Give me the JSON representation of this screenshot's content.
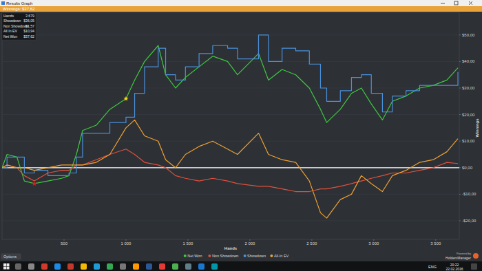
{
  "window": {
    "title": "Results Graph"
  },
  "header": {
    "winnings": "Winnings: $37,62"
  },
  "stats_box": {
    "rows": [
      [
        "Hands",
        "3 679"
      ],
      [
        "Showdown",
        "$36,05"
      ],
      [
        "Non Showdown",
        "$1,57"
      ],
      [
        "All In EV",
        "$10,94"
      ],
      [
        "Net Won",
        "$37,62"
      ]
    ]
  },
  "chart_data": {
    "type": "line",
    "x_label": "Hands",
    "y_label": "Winnings",
    "x": [
      0,
      40,
      120,
      180,
      260,
      370,
      480,
      540,
      600,
      650,
      760,
      870,
      1000,
      1070,
      1150,
      1260,
      1320,
      1400,
      1480,
      1590,
      1700,
      1820,
      1900,
      2070,
      2150,
      2260,
      2370,
      2480,
      2570,
      2620,
      2730,
      2820,
      2900,
      2980,
      3070,
      3150,
      3260,
      3370,
      3480,
      3590,
      3679
    ],
    "series": [
      {
        "name": "Net Won",
        "color": "#3ec93e",
        "values": [
          0,
          5,
          4,
          -5,
          -6,
          -5,
          -4,
          -3,
          5,
          14,
          16,
          22,
          26,
          33,
          40,
          46,
          35,
          30,
          34,
          38,
          42,
          40,
          35,
          43,
          33,
          37,
          35,
          30,
          22,
          17,
          22,
          28,
          30,
          24,
          18,
          25,
          27,
          30,
          31,
          33,
          37.62
        ]
      },
      {
        "name": "Non Showdown",
        "color": "#e0503c",
        "values": [
          0,
          1,
          0,
          -3,
          -5,
          -2,
          -1,
          -1,
          1,
          1,
          3,
          5,
          7,
          5,
          2,
          1,
          0,
          -3,
          -4,
          -5,
          -4,
          -5,
          -6,
          -7,
          -7,
          -8,
          -9,
          -9,
          -8,
          -8,
          -7,
          -6,
          -5,
          -4,
          -3,
          -2,
          -2,
          -1,
          0,
          2,
          1.57
        ]
      },
      {
        "name": "Showdown",
        "color": "#4a90d9",
        "line_style": "step",
        "values": [
          0,
          4,
          4,
          -2,
          -1,
          -3,
          -3,
          -2,
          4,
          13,
          13,
          17,
          19,
          28,
          38,
          45,
          35,
          33,
          38,
          43,
          46,
          45,
          41,
          50,
          40,
          45,
          44,
          39,
          30,
          25,
          29,
          34,
          35,
          28,
          21,
          27,
          29,
          31,
          31,
          31,
          36.05
        ]
      },
      {
        "name": "All-In EV",
        "color": "#f0a030",
        "values": [
          0,
          1,
          0,
          0,
          -1,
          0,
          1,
          1,
          1,
          1,
          2,
          5,
          15,
          18,
          12,
          10,
          3,
          0,
          5,
          8,
          10,
          7,
          5,
          13,
          5,
          3,
          2,
          -5,
          -17,
          -19,
          -12,
          -10,
          -3,
          -6,
          -9,
          -3,
          -1,
          2,
          3,
          6,
          10.94
        ]
      }
    ],
    "star_points": [
      {
        "x": 1000,
        "y": 26,
        "color": "#ffd700"
      },
      {
        "x": 260,
        "y": -6,
        "color": "#e02020"
      }
    ],
    "xlim": [
      0,
      3690
    ],
    "xticks": [
      500,
      {
        "value": 1000,
        "label": "1 000"
      },
      {
        "value": 1500,
        "label": "1 500"
      },
      {
        "value": 2000,
        "label": "2 000"
      },
      {
        "value": 2500,
        "label": "2 500"
      },
      {
        "value": 3000,
        "label": "3 000"
      },
      {
        "value": 3500,
        "label": "3 500"
      }
    ],
    "ylim": [
      -27,
      58.5
    ],
    "yticks": [
      {
        "value": -20,
        "label": "-$20,00"
      },
      {
        "value": -10,
        "label": "-$10,00"
      },
      {
        "value": 0,
        "label": "$0,00"
      },
      {
        "value": 10,
        "label": "$10,00"
      },
      {
        "value": 20,
        "label": "$20,00"
      },
      {
        "value": 30,
        "label": "$30,00"
      },
      {
        "value": 40,
        "label": "$40,00"
      },
      {
        "value": 50,
        "label": "$50,00"
      }
    ],
    "grid": true,
    "legend": "bottom"
  },
  "footer": {
    "options": "Options",
    "powered_by": "Powered by",
    "brand": "HoldemManager"
  },
  "taskbar": {
    "language": "ENG",
    "time": "20:22",
    "date": "22.02.2016"
  }
}
